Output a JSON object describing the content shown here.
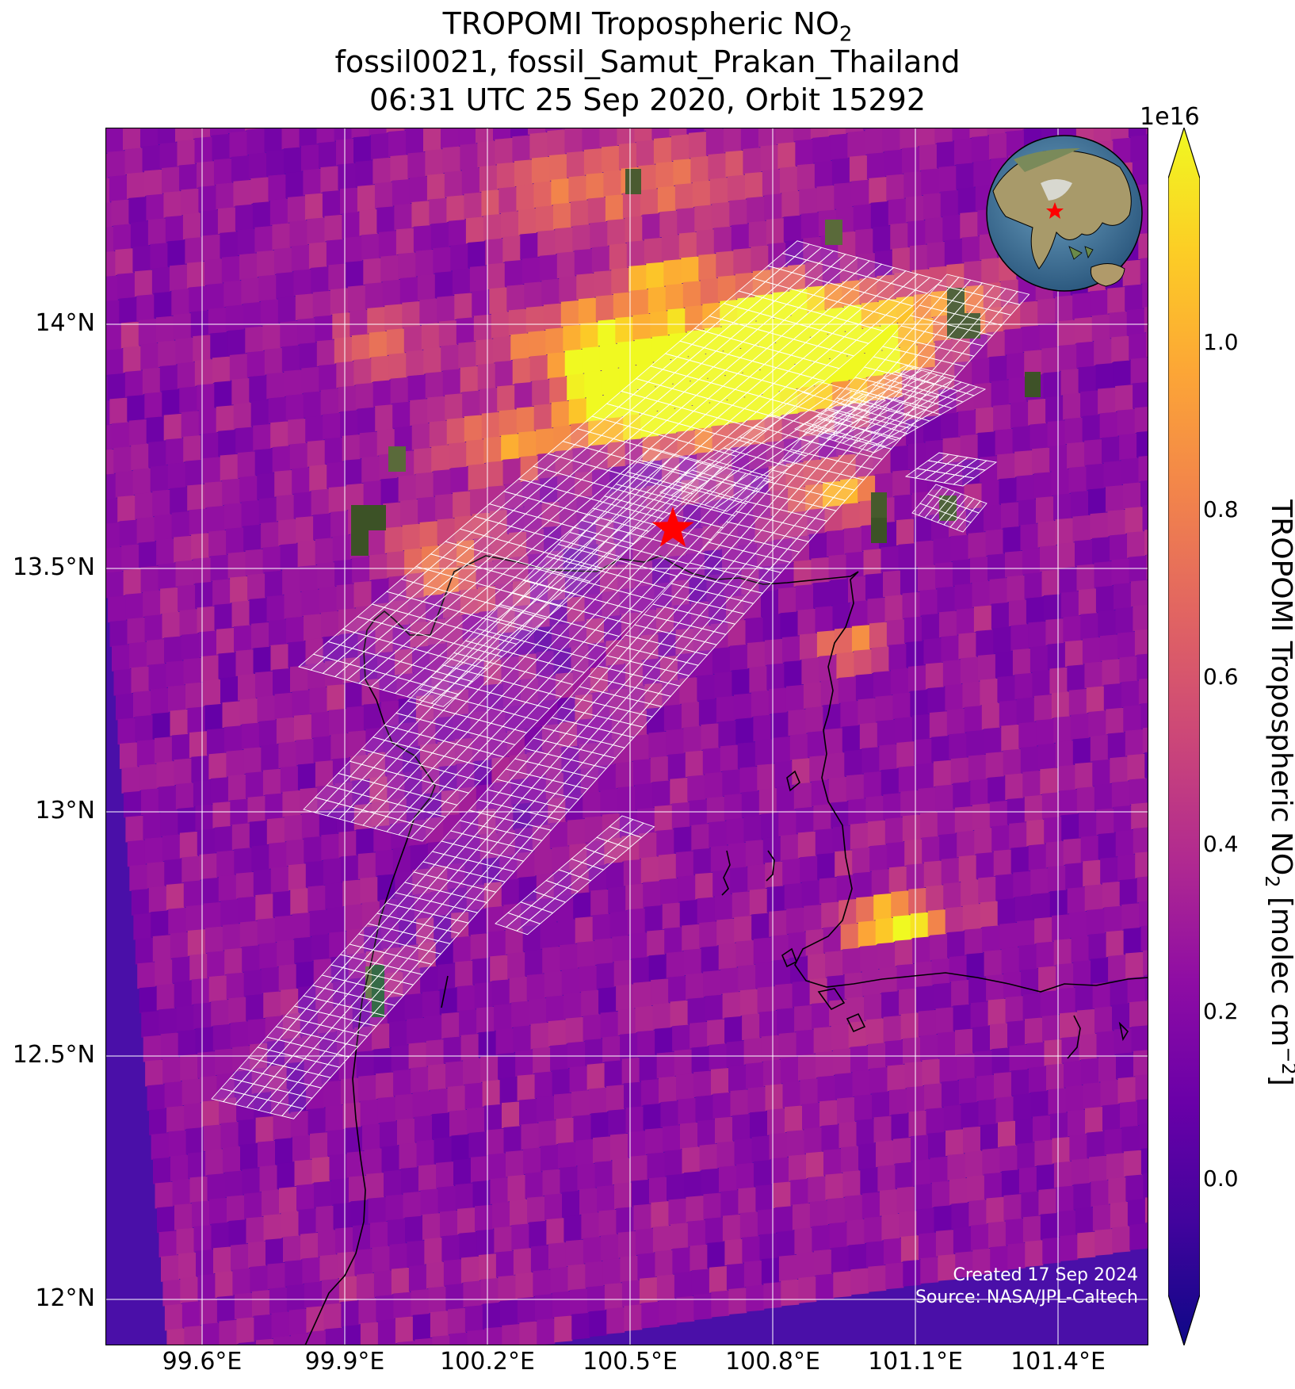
{
  "title": {
    "line1_prefix": "TROPOMI Tropospheric NO",
    "line1_sub": "2",
    "line2": "fossil0021, fossil_Samut_Prakan_Thailand",
    "line3": "06:31 UTC 25 Sep 2020, Orbit 15292"
  },
  "map": {
    "lat_ticks": [
      "14°N",
      "13.5°N",
      "13°N",
      "12.5°N",
      "12°N"
    ],
    "lon_ticks": [
      "99.6°E",
      "99.9°E",
      "100.2°E",
      "100.5°E",
      "100.8°E",
      "101.1°E",
      "101.4°E"
    ],
    "lat_range": [
      11.92,
      14.4
    ],
    "lon_range": [
      99.44,
      101.6
    ],
    "site_marker": {
      "name": "Samut Prakan",
      "lat": 13.6,
      "lon": 100.6,
      "color": "#ff0000",
      "icon": "star-icon"
    },
    "grid_color": "#ffffff",
    "coastline_color": "#000000"
  },
  "colorbar": {
    "colormap": "plasma",
    "exponent_label": "1e16",
    "ticks": [
      "1.0",
      "0.8",
      "0.6",
      "0.4",
      "0.2",
      "0.0"
    ],
    "range": [
      -0.12,
      1.2
    ],
    "extend": "both",
    "label_prefix": "TROPOMI Tropospheric NO",
    "label_sub": "2",
    "label_mid": " [molec cm",
    "label_sup": "−2",
    "label_end": "]"
  },
  "inset": {
    "icon": "globe-icon",
    "marker_color": "#ff0000"
  },
  "credits": {
    "created": "Created 17 Sep 2024",
    "source": "Source: NASA/JPL-Caltech"
  }
}
